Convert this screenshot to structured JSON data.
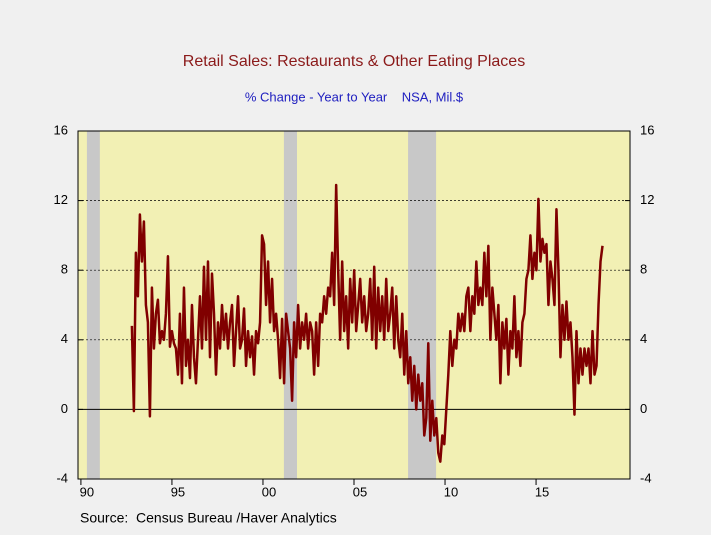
{
  "chart_data": {
    "type": "line",
    "title": "Retail Sales: Restaurants & Other Eating Places",
    "subtitle": "% Change - Year to Year    NSA, Mil.$",
    "source": "Source:  Census Bureau /Haver Analytics",
    "xlim": [
      1989.84,
      2020.16
    ],
    "xticks": [
      {
        "value": 1990,
        "label": "90"
      },
      {
        "value": 1995,
        "label": "95"
      },
      {
        "value": 2000,
        "label": "00"
      },
      {
        "value": 2005,
        "label": "05"
      },
      {
        "value": 2010,
        "label": "10"
      },
      {
        "value": 2015,
        "label": "15"
      }
    ],
    "ylim": [
      -4,
      16
    ],
    "yticks": [
      -4,
      0,
      4,
      8,
      12,
      16
    ],
    "y2lim": [
      -4,
      16
    ],
    "y2ticks": [
      -4,
      0,
      4,
      8,
      12,
      16
    ],
    "grid": true,
    "shaded_periods": [
      [
        1990.33,
        1991.04
      ],
      [
        2001.15,
        2001.87
      ],
      [
        2007.97,
        2009.51
      ]
    ],
    "shade_color": "#c8c8c8",
    "x": [
      1992.8,
      1992.91,
      1993.02,
      1993.13,
      1993.24,
      1993.35,
      1993.46,
      1993.57,
      1993.68,
      1993.79,
      1993.9,
      1994.01,
      1994.12,
      1994.23,
      1994.34,
      1994.45,
      1994.56,
      1994.67,
      1994.78,
      1994.89,
      1995,
      1995.11,
      1995.22,
      1995.33,
      1995.44,
      1995.55,
      1995.66,
      1995.77,
      1995.88,
      1995.99,
      1996.1,
      1996.21,
      1996.32,
      1996.43,
      1996.54,
      1996.65,
      1996.76,
      1996.87,
      1996.98,
      1997.09,
      1997.2,
      1997.31,
      1997.42,
      1997.53,
      1997.64,
      1997.75,
      1997.86,
      1997.97,
      1998.08,
      1998.19,
      1998.3,
      1998.41,
      1998.52,
      1998.63,
      1998.74,
      1998.85,
      1998.96,
      1999.07,
      1999.18,
      1999.29,
      1999.4,
      1999.51,
      1999.62,
      1999.73,
      1999.84,
      1999.95,
      2000.06,
      2000.17,
      2000.28,
      2000.39,
      2000.5,
      2000.61,
      2000.72,
      2000.83,
      2000.94,
      2001.05,
      2001.16,
      2001.27,
      2001.38,
      2001.49,
      2001.6,
      2001.71,
      2001.82,
      2001.93,
      2002.04,
      2002.15,
      2002.26,
      2002.37,
      2002.48,
      2002.59,
      2002.7,
      2002.81,
      2002.92,
      2003.03,
      2003.14,
      2003.25,
      2003.36,
      2003.47,
      2003.58,
      2003.69,
      2003.8,
      2003.91,
      2004.02,
      2004.13,
      2004.24,
      2004.35,
      2004.46,
      2004.57,
      2004.68,
      2004.79,
      2004.9,
      2005.01,
      2005.12,
      2005.23,
      2005.34,
      2005.45,
      2005.56,
      2005.67,
      2005.78,
      2005.89,
      2006,
      2006.11,
      2006.22,
      2006.33,
      2006.44,
      2006.55,
      2006.66,
      2006.77,
      2006.88,
      2006.99,
      2007.1,
      2007.21,
      2007.32,
      2007.43,
      2007.54,
      2007.65,
      2007.76,
      2007.87,
      2007.98,
      2008.09,
      2008.2,
      2008.31,
      2008.42,
      2008.53,
      2008.64,
      2008.75,
      2008.86,
      2008.97,
      2009.08,
      2009.19,
      2009.3,
      2009.41,
      2009.52,
      2009.63,
      2009.74,
      2009.85,
      2009.96,
      2010.07,
      2010.18,
      2010.29,
      2010.4,
      2010.51,
      2010.62,
      2010.73,
      2010.84,
      2010.95,
      2011.06,
      2011.17,
      2011.28,
      2011.39,
      2011.5,
      2011.61,
      2011.72,
      2011.83,
      2011.94,
      2012.05,
      2012.16,
      2012.27,
      2012.38,
      2012.49,
      2012.6,
      2012.71,
      2012.82,
      2012.93,
      2013.04,
      2013.15,
      2013.26,
      2013.37,
      2013.48,
      2013.59,
      2013.7,
      2013.81,
      2013.92,
      2014.03,
      2014.14,
      2014.25,
      2014.36,
      2014.47,
      2014.58,
      2014.69,
      2014.8,
      2014.91,
      2015.02,
      2015.13,
      2015.24,
      2015.35,
      2015.46,
      2015.57,
      2015.68,
      2015.79,
      2015.9,
      2016.01,
      2016.12,
      2016.23,
      2016.34,
      2016.45,
      2016.56,
      2016.67,
      2016.78,
      2016.89,
      2017,
      2017.11,
      2017.22,
      2017.33,
      2017.44,
      2017.55,
      2017.66,
      2017.77,
      2017.88,
      2017.99,
      2018.1,
      2018.21,
      2018.32,
      2018.43,
      2018.54,
      2018.65
    ],
    "series": [
      {
        "name": "Retail Sales: Restaurants & Other Eating Places",
        "color": "#800000",
        "values": [
          4.8,
          -0.1,
          9,
          6.5,
          11.2,
          8.5,
          10.8,
          6,
          5,
          -0.4,
          7,
          3.5,
          5.5,
          6.3,
          3.8,
          4.5,
          4,
          5.5,
          8.8,
          3.6,
          4.5,
          3.8,
          3.5,
          2,
          5.5,
          1.5,
          7,
          2.5,
          4,
          1.8,
          6,
          3,
          1.5,
          4,
          6.5,
          3.5,
          8.2,
          4,
          8.5,
          3,
          7.8,
          5.5,
          2,
          5,
          3.5,
          6,
          4,
          5.5,
          3.5,
          5,
          6,
          2.5,
          4.5,
          6.5,
          3.5,
          4,
          5.8,
          2.5,
          4.5,
          3,
          4.2,
          2,
          4.5,
          3.8,
          5,
          10,
          9.5,
          6,
          8.5,
          5,
          7.5,
          4.5,
          5.5,
          4,
          1.8,
          5.2,
          1.5,
          5.5,
          4.5,
          3.5,
          0.5,
          5,
          3,
          6,
          3.5,
          5,
          4,
          5.5,
          3.5,
          5,
          4.5,
          2,
          5,
          2.5,
          5.5,
          5,
          6.5,
          5.5,
          7,
          6.5,
          9,
          6,
          12.9,
          8,
          4,
          8.5,
          4.5,
          6.5,
          3.5,
          7.5,
          5,
          8,
          4.5,
          6,
          7.5,
          5,
          6.5,
          4.5,
          5.5,
          7.5,
          4,
          8.2,
          3.5,
          7,
          4.5,
          6.5,
          4,
          7.5,
          4.5,
          5.5,
          7,
          3.5,
          6.5,
          4,
          3,
          5.5,
          2,
          4.5,
          1.5,
          3,
          0.5,
          2.5,
          0,
          2,
          0.5,
          1.5,
          -1.5,
          -0.5,
          3.8,
          -1.8,
          0.5,
          -1.5,
          -0.5,
          -2.5,
          -3,
          -1.5,
          -2,
          0,
          2,
          4.5,
          2.5,
          4,
          3.5,
          5.5,
          4.5,
          5.5,
          4.5,
          6.5,
          7,
          4.5,
          6.5,
          5.5,
          8.5,
          6,
          7,
          6,
          9,
          6.5,
          9.4,
          4,
          7,
          5.5,
          4,
          6,
          1.5,
          5,
          3.5,
          5.2,
          2,
          4.5,
          3.5,
          6.5,
          3,
          4.5,
          2.5,
          5,
          5.5,
          7.5,
          8,
          10,
          7.5,
          9,
          8,
          12.1,
          8.5,
          9.8,
          9,
          9.5,
          6,
          8.5,
          7.5,
          6,
          11.5,
          8,
          3,
          6,
          4,
          6.2,
          4,
          5,
          3,
          -0.3,
          4.5,
          1.5,
          3.5,
          2,
          3.5,
          2.5,
          3.5,
          1.5,
          4.5,
          2,
          2.5,
          6,
          8.5,
          9.4
        ]
      }
    ]
  }
}
